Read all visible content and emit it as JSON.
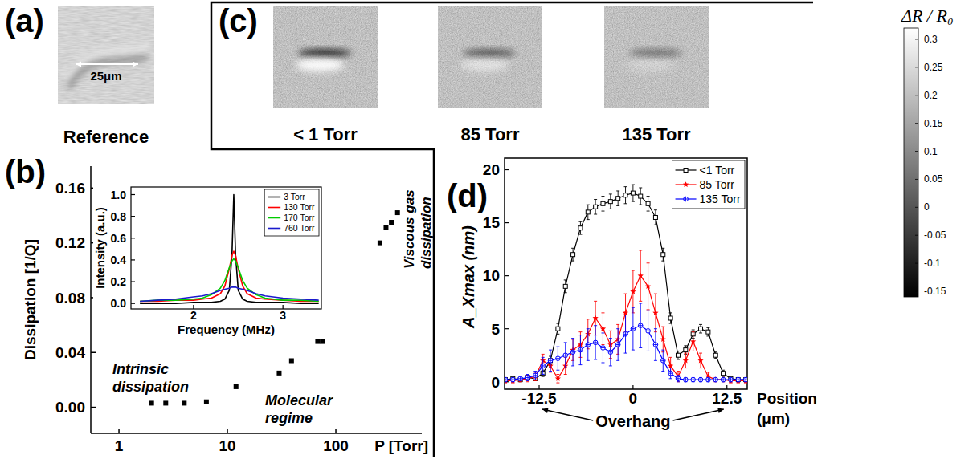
{
  "figure": {
    "panel_labels": [
      "(a)",
      "(b)",
      "(c)",
      "(d)"
    ],
    "reference": {
      "caption": "Reference",
      "scale_bar": "25μm"
    }
  },
  "chart_data": [
    {
      "type": "scatter",
      "xlabel": "P [Torr]",
      "ylabel": "Dissipation [1/Q]",
      "log": "x",
      "xlim": [
        0.55,
        620
      ],
      "ylim": [
        -0.019,
        0.176
      ],
      "xticks": [
        1,
        10,
        100
      ],
      "yticks": [
        {
          "value": 0,
          "label": "0.00"
        },
        0.04,
        0.08,
        0.12,
        0.16
      ],
      "x": [
        2,
        2.7,
        4,
        6.4,
        12,
        30,
        39,
        68,
        75,
        255,
        290,
        325,
        370
      ],
      "values": [
        0.003,
        0.003,
        0.003,
        0.004,
        0.015,
        0.025,
        0.034,
        0.048,
        0.048,
        0.12,
        0.131,
        0.135,
        0.142
      ],
      "color": "#000000",
      "marker": "square",
      "annotations": [
        "Intrinsic dissipation",
        "Molecular regime",
        "Viscous gas dissipation"
      ]
    },
    {
      "type": "line",
      "xlabel": "Frequency (MHz)",
      "ylabel": "Intensity (a.u.)",
      "xlim": [
        1.3,
        3.43
      ],
      "ylim": [
        -0.05,
        1.07
      ],
      "xticks": [
        2,
        3
      ],
      "yticks": [
        {
          "value": 0,
          "label": "0.0"
        },
        0.2,
        0.4,
        0.6,
        0.8,
        {
          "value": 1,
          "label": "1.0"
        }
      ],
      "legend": "top-right",
      "x": [
        1.4,
        1.6,
        1.8,
        2.0,
        2.1,
        2.2,
        2.3,
        2.35,
        2.4,
        2.43,
        2.45,
        2.47,
        2.5,
        2.55,
        2.6,
        2.7,
        2.8,
        3.0,
        3.2,
        3.4
      ],
      "series": [
        {
          "name": "3 Torr",
          "color": "#000000",
          "values": [
            0,
            0,
            0,
            0.01,
            0.01,
            0.01,
            0.02,
            0.04,
            0.12,
            0.45,
            1.0,
            0.45,
            0.12,
            0.04,
            0.02,
            0.01,
            0.01,
            0.01,
            0,
            0
          ]
        },
        {
          "name": "130 Torr",
          "color": "#ff0000",
          "values": [
            0.02,
            0.02,
            0.03,
            0.03,
            0.04,
            0.05,
            0.09,
            0.16,
            0.32,
            0.44,
            0.48,
            0.44,
            0.32,
            0.16,
            0.09,
            0.05,
            0.04,
            0.03,
            0.02,
            0.02
          ]
        },
        {
          "name": "170 Torr",
          "color": "#00cc00",
          "values": [
            0.02,
            0.03,
            0.03,
            0.04,
            0.05,
            0.08,
            0.14,
            0.21,
            0.33,
            0.39,
            0.41,
            0.39,
            0.33,
            0.21,
            0.14,
            0.08,
            0.05,
            0.03,
            0.03,
            0.02
          ]
        },
        {
          "name": "760 Torr",
          "color": "#1a1acc",
          "values": [
            0.02,
            0.03,
            0.04,
            0.06,
            0.07,
            0.09,
            0.12,
            0.13,
            0.14,
            0.15,
            0.15,
            0.15,
            0.14,
            0.13,
            0.12,
            0.09,
            0.07,
            0.05,
            0.04,
            0.03
          ]
        }
      ]
    },
    {
      "type": "image",
      "titles": [
        "< 1 Torr",
        "85 Torr",
        "135 Torr"
      ],
      "colorbar": {
        "label": "ΔR / R₀",
        "range": [
          -0.16,
          0.32
        ],
        "ticks": [
          0.3,
          0.25,
          0.2,
          0.15,
          0.1,
          0.05,
          0,
          -0.05,
          -0.1,
          -0.15
        ]
      }
    },
    {
      "type": "line",
      "xlabel": "Position (μm)",
      "ylabel": "A_Xmax (nm)",
      "xlim": [
        -17.1,
        15.2
      ],
      "ylim": [
        -0.7,
        21.1
      ],
      "xticks": [
        -12.5,
        0,
        12.5
      ],
      "yticks": [
        0,
        5,
        10,
        15,
        20
      ],
      "legend": "top-right",
      "annotations": [
        "Overhang"
      ],
      "x": [
        -17,
        -16,
        -15,
        -14,
        -13,
        -12,
        -11,
        -10,
        -9,
        -8,
        -7,
        -6,
        -5,
        -4,
        -3,
        -2,
        -1,
        0,
        1,
        2,
        3,
        4,
        5,
        6,
        7,
        8,
        9,
        10,
        11,
        12,
        13,
        14,
        15
      ],
      "series": [
        {
          "name": "<1 Torr",
          "color": "#000000",
          "marker": "square-open",
          "line_style": "solid",
          "values": [
            0.2,
            0.3,
            0.2,
            0.4,
            0.3,
            0.8,
            2,
            5,
            9,
            12,
            14.5,
            16,
            16.5,
            16.8,
            17,
            17.3,
            17.6,
            17.8,
            17.5,
            16.8,
            15.5,
            12,
            6,
            2.5,
            3,
            4.5,
            5,
            4.7,
            2.5,
            0.8,
            0.3,
            0.2,
            0.2
          ],
          "errors": [
            0.2,
            0.2,
            0.2,
            0.2,
            0.2,
            0.3,
            0.4,
            0.5,
            0.6,
            0.6,
            0.6,
            0.7,
            0.7,
            0.7,
            0.7,
            0.7,
            0.8,
            0.8,
            0.8,
            0.7,
            0.7,
            0.6,
            0.5,
            0.4,
            0.4,
            0.4,
            0.4,
            0.4,
            0.3,
            0.3,
            0.2,
            0.2,
            0.2
          ]
        },
        {
          "name": "85 Torr",
          "color": "#ff0000",
          "marker": "star",
          "line_style": "solid",
          "values": [
            0.1,
            0.1,
            0.2,
            0.3,
            0.5,
            2,
            1.5,
            0.3,
            1.5,
            3,
            3.5,
            4.5,
            6,
            5,
            3.5,
            4,
            6.5,
            8.5,
            10,
            9,
            6.5,
            4,
            1.5,
            0.5,
            2,
            3.8,
            2,
            0.5,
            0.2,
            0.2,
            0.1,
            0.1,
            0.1
          ],
          "errors": [
            0.2,
            0.2,
            0.2,
            0.3,
            0.4,
            0.6,
            0.6,
            0.4,
            0.8,
            1,
            1.2,
            1.4,
            1.6,
            1.5,
            1.3,
            1.4,
            1.8,
            2,
            2.4,
            2.2,
            1.8,
            1.2,
            0.8,
            0.5,
            0.7,
            0.9,
            0.7,
            0.4,
            0.2,
            0.2,
            0.2,
            0.2,
            0.2
          ]
        },
        {
          "name": "135 Torr",
          "color": "#0000ff",
          "marker": "circle-plus",
          "line_style": "solid",
          "values": [
            0.2,
            0.2,
            0.3,
            0.4,
            0.6,
            1.5,
            2,
            2.2,
            2.5,
            2.8,
            3,
            3.5,
            3.7,
            3.2,
            2.8,
            3.5,
            4.5,
            5,
            5.3,
            4.8,
            3.5,
            2,
            0.8,
            0.3,
            0.2,
            0.2,
            0.2,
            0.2,
            0.2,
            0.2,
            0.2,
            0.2,
            0.2
          ],
          "errors": [
            0.2,
            0.2,
            0.2,
            0.3,
            0.4,
            0.8,
            1,
            1.1,
            1.2,
            1.3,
            1.4,
            1.5,
            1.6,
            1.4,
            1.3,
            1.5,
            1.8,
            2,
            2.1,
            1.9,
            1.5,
            1,
            0.5,
            0.3,
            0.2,
            0.2,
            0.2,
            0.2,
            0.2,
            0.2,
            0.2,
            0.2,
            0.2
          ]
        }
      ]
    }
  ]
}
